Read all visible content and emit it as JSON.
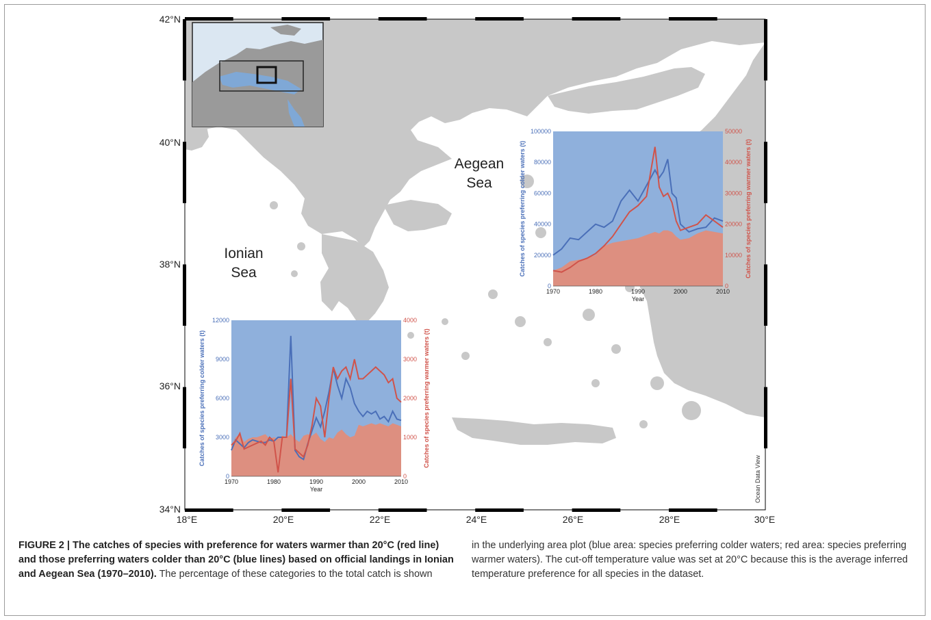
{
  "map": {
    "lat_labels": [
      "42°N",
      "40°N",
      "38°N",
      "36°N",
      "34°N"
    ],
    "lon_labels": [
      "18°E",
      "20°E",
      "22°E",
      "24°E",
      "26°E",
      "28°E",
      "30°E"
    ],
    "sea_labels": {
      "aegean_1": "Aegean",
      "aegean_2": "Sea",
      "ionian_1": "Ionian",
      "ionian_2": "Sea"
    },
    "watermark": "Ocean Data View",
    "colors": {
      "land": "#c8c8c8",
      "water": "#ffffff",
      "inset_sea": "#7fa8d6",
      "frame": "#000000"
    }
  },
  "chart_data": [
    {
      "type": "area",
      "region": "Aegean Sea",
      "xlabel": "Year",
      "ylabel": "Catches of species preferring colder waters (t)",
      "y2label": "Catches of species preferring warmer waters (t)",
      "xlim": [
        1970,
        2010
      ],
      "xticks": [
        "1970",
        "1980",
        "1990",
        "2000",
        "2010"
      ],
      "ylim": [
        0,
        100000
      ],
      "yticks": [
        "0",
        "20000",
        "40000",
        "60000",
        "80000",
        "100000"
      ],
      "y2lim": [
        0,
        50000
      ],
      "y2ticks": [
        "0",
        "10000",
        "20000",
        "30000",
        "40000",
        "50000"
      ],
      "colors": {
        "cold": "#4a6fb8",
        "warm": "#d0534a",
        "cold_area": "#8fb0dc",
        "warm_area": "#dd8f80"
      },
      "x": [
        1970,
        1972,
        1974,
        1976,
        1978,
        1980,
        1982,
        1984,
        1986,
        1988,
        1990,
        1992,
        1994,
        1995,
        1996,
        1997,
        1998,
        1999,
        2000,
        2002,
        2004,
        2006,
        2008,
        2010
      ],
      "cold_line": [
        20000,
        24000,
        31000,
        30000,
        35000,
        40000,
        38000,
        42000,
        55000,
        62000,
        55000,
        65000,
        75000,
        70000,
        74000,
        82000,
        60000,
        57000,
        40000,
        35000,
        37000,
        38000,
        44000,
        42000
      ],
      "warm_line": [
        5000,
        4500,
        6000,
        8000,
        9000,
        10500,
        13000,
        16000,
        20000,
        24000,
        26000,
        29000,
        45000,
        32000,
        29000,
        30000,
        27000,
        21000,
        18000,
        19000,
        20000,
        23000,
        21000,
        19000
      ],
      "area_split_pct": [
        10,
        12,
        16,
        17,
        18,
        20,
        26,
        28,
        29,
        30,
        31,
        33,
        35,
        34,
        36,
        36,
        35,
        32,
        30,
        31,
        34,
        36,
        35,
        34
      ]
    },
    {
      "type": "area",
      "region": "Ionian Sea",
      "xlabel": "Year",
      "ylabel": "Catches of species preferring colder waters (t)",
      "y2label": "Catches of species preferring warmer waters (t)",
      "xlim": [
        1970,
        2010
      ],
      "xticks": [
        "1970",
        "1980",
        "1990",
        "2000",
        "2010"
      ],
      "ylim": [
        0,
        12000
      ],
      "yticks": [
        "0",
        "3000",
        "6000",
        "9000",
        "12000"
      ],
      "y2lim": [
        0,
        4000
      ],
      "y2ticks": [
        "0",
        "1000",
        "2000",
        "3000",
        "4000"
      ],
      "colors": {
        "cold": "#4a6fb8",
        "warm": "#d0534a",
        "cold_area": "#8fb0dc",
        "warm_area": "#dd8f80"
      },
      "x": [
        1970,
        1971,
        1972,
        1973,
        1974,
        1975,
        1976,
        1977,
        1978,
        1979,
        1980,
        1981,
        1982,
        1983,
        1984,
        1985,
        1986,
        1987,
        1988,
        1989,
        1990,
        1991,
        1992,
        1993,
        1994,
        1995,
        1996,
        1997,
        1998,
        1999,
        2000,
        2001,
        2002,
        2003,
        2004,
        2005,
        2006,
        2007,
        2008,
        2009,
        2010
      ],
      "cold_line": [
        2000,
        2800,
        2500,
        2200,
        2600,
        2800,
        2700,
        2600,
        2600,
        2800,
        2700,
        3000,
        3000,
        3000,
        10800,
        2000,
        1500,
        1300,
        2500,
        3500,
        4500,
        3800,
        5000,
        6500,
        8300,
        7000,
        6000,
        7500,
        6800,
        5600,
        5000,
        4600,
        5000,
        4800,
        5000,
        4400,
        4600,
        4200,
        5000,
        4400,
        4300
      ],
      "warm_line": [
        800,
        900,
        1100,
        700,
        750,
        800,
        850,
        900,
        800,
        1000,
        900,
        100,
        1000,
        1000,
        2500,
        700,
        600,
        500,
        800,
        1300,
        2000,
        1800,
        1000,
        2000,
        2800,
        2500,
        2700,
        2800,
        2500,
        3000,
        2500,
        2500,
        2600,
        2700,
        2800,
        2700,
        2600,
        2400,
        2500,
        2000,
        1900
      ],
      "area_split_pct": [
        20,
        25,
        27,
        22,
        24,
        25,
        25,
        26,
        27,
        24,
        25,
        24,
        26,
        25,
        27,
        24,
        22,
        26,
        27,
        26,
        28,
        24,
        22,
        25,
        24,
        28,
        30,
        27,
        25,
        26,
        33,
        32,
        33,
        34,
        33,
        34,
        33,
        32,
        34,
        33,
        32
      ]
    }
  ],
  "caption": {
    "bold": "FIGURE 2 | The catches of species with preference for waters warmer than 20°C (red line) and those preferring waters colder than 20°C (blue lines) based on official landings in Ionian and Aegean Sea (1970–2010).",
    "rest_left": "The percentage of these categories to the total catch is shown",
    "right": "in the underlying area plot (blue area: species preferring colder waters; red area: species preferring warmer waters). The cut-off temperature value was set at 20°C because this is the average inferred temperature preference for all species in the dataset."
  }
}
